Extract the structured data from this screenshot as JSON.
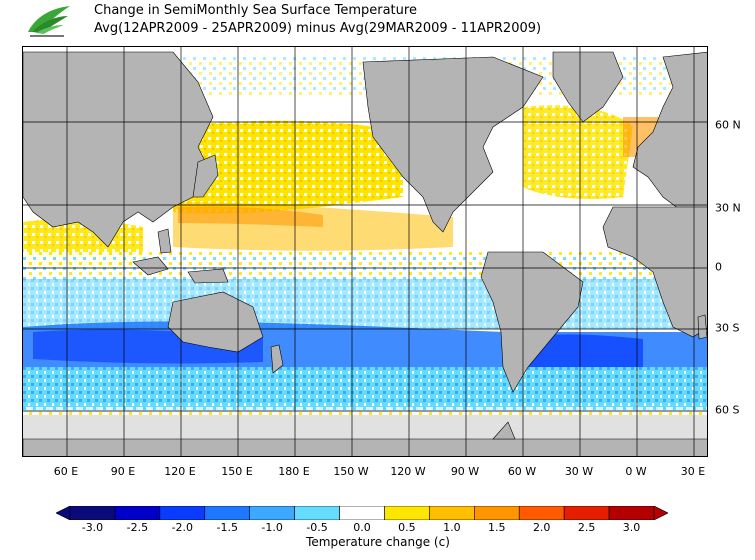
{
  "title": {
    "line1": "Change in SemiMonthly Sea Surface Temperature",
    "line2": "Avg(12APR2009 - 25APR2009) minus Avg(29MAR2009 - 11APR2009)"
  },
  "axes": {
    "lon_labels": [
      "60 E",
      "90 E",
      "120 E",
      "150 E",
      "180 E",
      "150 W",
      "120 W",
      "90 W",
      "60 W",
      "30 W",
      "0 W",
      "30 E"
    ],
    "lat_labels": [
      "60 N",
      "30 N",
      "0",
      "30 S",
      "60 S"
    ]
  },
  "colorbar": {
    "title": "Temperature change  (c)",
    "ticks": [
      "-3.0",
      "-2.5",
      "-2.0",
      "-1.5",
      "-1.0",
      "-0.5",
      "0.0",
      "0.5",
      "1.0",
      "1.5",
      "2.0",
      "2.5",
      "3.0"
    ],
    "colors": [
      "#0a0a7a",
      "#0000c8",
      "#0a3cff",
      "#1e78ff",
      "#3ca8ff",
      "#64dcff",
      "#ffffff",
      "#ffe600",
      "#ffbe00",
      "#ff9600",
      "#ff5a00",
      "#e61e00",
      "#b40000"
    ],
    "under_color": "#0a0a7a",
    "over_color": "#b40000"
  },
  "map": {
    "land_color": "#b4b4b4",
    "ice_color": "#e1e1e1"
  }
}
